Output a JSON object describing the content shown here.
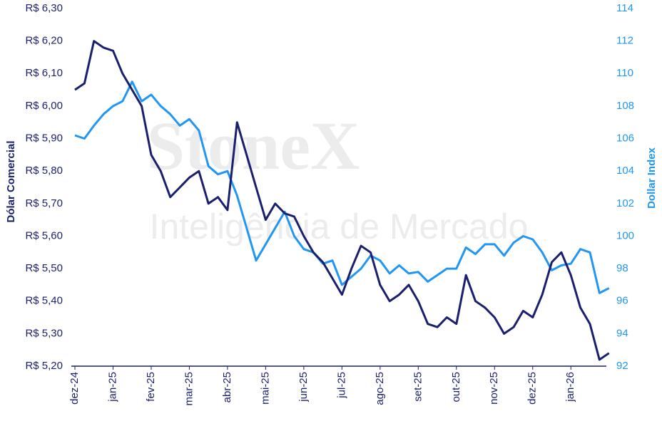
{
  "chart_data": {
    "type": "line",
    "watermark": "StoneX",
    "watermark_subtitle": "Inteligência de Mercado",
    "ylabel": "Dólar Comercial",
    "y2label": "Dollar Index",
    "categories": [
      "dez-24",
      null,
      null,
      null,
      "jan-25",
      null,
      null,
      null,
      "fev-25",
      null,
      null,
      null,
      "mar-25",
      null,
      null,
      null,
      "abr-25",
      null,
      null,
      null,
      "mai-25",
      null,
      null,
      null,
      "jun-25",
      null,
      null,
      null,
      "jul-25",
      null,
      null,
      null,
      "ago-25",
      null,
      null,
      null,
      "set-25",
      null,
      null,
      null,
      "out-25",
      null,
      null,
      null,
      "nov-25",
      null,
      null,
      null,
      "dez-25",
      null,
      null,
      null,
      "jan-26",
      null,
      null,
      null,
      null
    ],
    "series": [
      {
        "name": "Dólar Comercial",
        "color": "#1b1f6e",
        "axis": "y",
        "values": [
          6.05,
          6.07,
          6.2,
          6.18,
          6.17,
          6.1,
          6.05,
          6.0,
          5.85,
          5.8,
          5.72,
          5.75,
          5.78,
          5.8,
          5.7,
          5.72,
          5.68,
          5.95,
          5.85,
          5.75,
          5.65,
          5.7,
          5.67,
          5.66,
          5.6,
          5.55,
          5.52,
          5.47,
          5.42,
          5.5,
          5.57,
          5.55,
          5.45,
          5.4,
          5.42,
          5.45,
          5.4,
          5.33,
          5.32,
          5.35,
          5.33,
          5.48,
          5.4,
          5.38,
          5.35,
          5.3,
          5.32,
          5.37,
          5.35,
          5.42,
          5.52,
          5.55,
          5.48,
          5.38,
          5.33,
          5.22,
          5.24
        ]
      },
      {
        "name": "Dollar Index",
        "color": "#2196f3",
        "axis": "y2",
        "values": [
          106.2,
          106.0,
          106.8,
          107.5,
          108.0,
          108.3,
          109.5,
          108.3,
          108.7,
          108.0,
          107.5,
          106.8,
          107.2,
          106.5,
          104.3,
          103.8,
          104.0,
          102.5,
          100.5,
          98.5,
          99.5,
          100.5,
          101.5,
          100.0,
          99.2,
          99.0,
          98.3,
          98.5,
          97.0,
          97.5,
          98.0,
          98.8,
          98.5,
          97.7,
          98.2,
          97.7,
          97.8,
          97.2,
          97.6,
          98.0,
          98.0,
          99.3,
          98.9,
          99.5,
          99.5,
          98.8,
          99.6,
          100.0,
          99.8,
          99.0,
          97.9,
          98.2,
          98.3,
          99.2,
          99.0,
          96.5,
          96.8
        ]
      }
    ],
    "ylim": [
      5.2,
      6.3
    ],
    "yticks": [
      {
        "value": 5.2,
        "label": "R$ 5,20"
      },
      {
        "value": 5.3,
        "label": "R$ 5,30"
      },
      {
        "value": 5.4,
        "label": "R$ 5,40"
      },
      {
        "value": 5.5,
        "label": "R$ 5,50"
      },
      {
        "value": 5.6,
        "label": "R$ 5,60"
      },
      {
        "value": 5.7,
        "label": "R$ 5,70"
      },
      {
        "value": 5.8,
        "label": "R$ 5,80"
      },
      {
        "value": 5.9,
        "label": "R$ 5,90"
      },
      {
        "value": 6.0,
        "label": "R$ 6,00"
      },
      {
        "value": 6.1,
        "label": "R$ 6,10"
      },
      {
        "value": 6.2,
        "label": "R$ 6,20"
      },
      {
        "value": 6.3,
        "label": "R$ 6,30"
      }
    ],
    "y2lim": [
      92,
      114
    ],
    "y2ticks": [
      92,
      94,
      96,
      98,
      100,
      102,
      104,
      106,
      108,
      110,
      112,
      114
    ],
    "grid": false
  }
}
